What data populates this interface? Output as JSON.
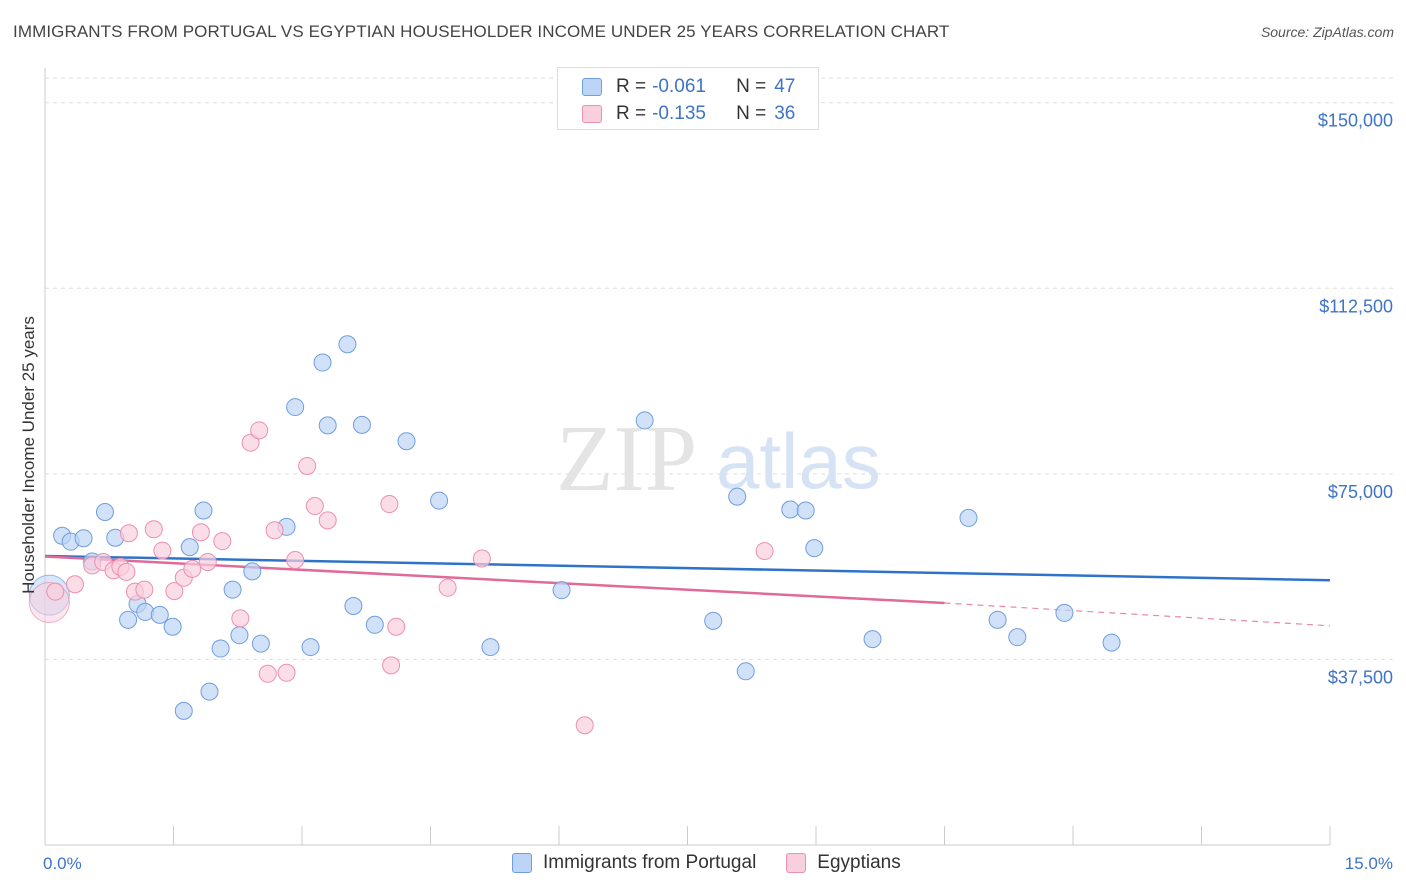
{
  "title": "IMMIGRANTS FROM PORTUGAL VS EGYPTIAN HOUSEHOLDER INCOME UNDER 25 YEARS CORRELATION CHART",
  "source": "Source: ZipAtlas.com",
  "watermark": {
    "zip": "ZIP",
    "atlas": "atlas"
  },
  "legend": {
    "r_label": "R =",
    "n_label": "N =",
    "rows": [
      {
        "r": "-0.061",
        "n": "47"
      },
      {
        "r": "-0.135",
        "n": "36"
      }
    ]
  },
  "colors": {
    "blue_fill": "#bcd4f5",
    "blue_stroke": "#6f9ee0",
    "blue_line": "#2f73c9",
    "pink_fill": "#f9cfdd",
    "pink_stroke": "#ec8fb0",
    "pink_line": "#e06a98",
    "axis_text": "#3d74c8",
    "grid": "#dddddd"
  },
  "chart_data": {
    "type": "scatter",
    "title": "IMMIGRANTS FROM PORTUGAL VS EGYPTIAN HOUSEHOLDER INCOME UNDER 25 YEARS CORRELATION CHART",
    "xlabel": "",
    "ylabel": "Householder Income Under 25 years",
    "xlim": [
      0,
      15
    ],
    "ylim": [
      0,
      155000
    ],
    "x_tick_labels": [
      "0.0%",
      "15.0%"
    ],
    "y_ticks": [
      37500,
      75000,
      112500,
      150000
    ],
    "y_tick_labels": [
      "$37,500",
      "$75,000",
      "$112,500",
      "$150,000"
    ],
    "grid": true,
    "legend_position": "top-center",
    "series": [
      {
        "name": "Immigrants from Portugal",
        "color": "#6f9ee0",
        "trend": {
          "x": [
            0,
            15
          ],
          "y": [
            58400,
            53500
          ]
        },
        "points": [
          {
            "x": 0.05,
            "y": 50500,
            "big": true
          },
          {
            "x": 0.2,
            "y": 62500
          },
          {
            "x": 0.3,
            "y": 61300
          },
          {
            "x": 0.45,
            "y": 62000
          },
          {
            "x": 0.55,
            "y": 57300
          },
          {
            "x": 0.7,
            "y": 67300
          },
          {
            "x": 0.82,
            "y": 62100
          },
          {
            "x": 0.97,
            "y": 45500
          },
          {
            "x": 1.08,
            "y": 48700
          },
          {
            "x": 1.17,
            "y": 47100
          },
          {
            "x": 1.34,
            "y": 46500
          },
          {
            "x": 1.49,
            "y": 44100
          },
          {
            "x": 1.62,
            "y": 27100
          },
          {
            "x": 1.69,
            "y": 60200
          },
          {
            "x": 1.85,
            "y": 67600
          },
          {
            "x": 1.92,
            "y": 31000
          },
          {
            "x": 2.05,
            "y": 39700
          },
          {
            "x": 2.19,
            "y": 51600
          },
          {
            "x": 2.27,
            "y": 42400
          },
          {
            "x": 2.42,
            "y": 55300
          },
          {
            "x": 2.52,
            "y": 40700
          },
          {
            "x": 2.82,
            "y": 64300
          },
          {
            "x": 2.92,
            "y": 88500
          },
          {
            "x": 3.1,
            "y": 40000
          },
          {
            "x": 3.24,
            "y": 97500
          },
          {
            "x": 3.3,
            "y": 84800
          },
          {
            "x": 3.53,
            "y": 101200
          },
          {
            "x": 3.6,
            "y": 48300
          },
          {
            "x": 3.7,
            "y": 84900
          },
          {
            "x": 3.85,
            "y": 44500
          },
          {
            "x": 4.22,
            "y": 81600
          },
          {
            "x": 4.6,
            "y": 69600
          },
          {
            "x": 5.2,
            "y": 40000
          },
          {
            "x": 6.03,
            "y": 51500
          },
          {
            "x": 7.0,
            "y": 85800
          },
          {
            "x": 7.8,
            "y": 45300
          },
          {
            "x": 8.08,
            "y": 70400
          },
          {
            "x": 8.18,
            "y": 35100
          },
          {
            "x": 8.7,
            "y": 67800
          },
          {
            "x": 8.88,
            "y": 67600
          },
          {
            "x": 8.98,
            "y": 60000
          },
          {
            "x": 9.66,
            "y": 41600
          },
          {
            "x": 10.78,
            "y": 66100
          },
          {
            "x": 11.12,
            "y": 45500
          },
          {
            "x": 11.35,
            "y": 42000
          },
          {
            "x": 11.9,
            "y": 46900
          },
          {
            "x": 12.45,
            "y": 40900
          }
        ]
      },
      {
        "name": "Egyptians",
        "color": "#ec8fb0",
        "trend": {
          "x": [
            0,
            10.5
          ],
          "y": [
            58300,
            48900
          ],
          "dashed_to": [
            15,
            44300
          ]
        },
        "points": [
          {
            "x": 0.05,
            "y": 49000,
            "big": true
          },
          {
            "x": 0.12,
            "y": 51200
          },
          {
            "x": 0.35,
            "y": 52700
          },
          {
            "x": 0.55,
            "y": 56500
          },
          {
            "x": 0.68,
            "y": 57200
          },
          {
            "x": 0.8,
            "y": 55500
          },
          {
            "x": 0.88,
            "y": 56200
          },
          {
            "x": 0.95,
            "y": 55200
          },
          {
            "x": 0.98,
            "y": 63000
          },
          {
            "x": 1.05,
            "y": 51200
          },
          {
            "x": 1.16,
            "y": 51600
          },
          {
            "x": 1.27,
            "y": 63800
          },
          {
            "x": 1.37,
            "y": 59500
          },
          {
            "x": 1.51,
            "y": 51300
          },
          {
            "x": 1.62,
            "y": 54000
          },
          {
            "x": 1.72,
            "y": 55800
          },
          {
            "x": 1.82,
            "y": 63200
          },
          {
            "x": 1.9,
            "y": 57200
          },
          {
            "x": 2.07,
            "y": 61400
          },
          {
            "x": 2.28,
            "y": 45800
          },
          {
            "x": 2.4,
            "y": 81300
          },
          {
            "x": 2.5,
            "y": 83800
          },
          {
            "x": 2.6,
            "y": 34600
          },
          {
            "x": 2.68,
            "y": 63600
          },
          {
            "x": 2.82,
            "y": 34800
          },
          {
            "x": 2.92,
            "y": 57600
          },
          {
            "x": 3.06,
            "y": 76600
          },
          {
            "x": 3.15,
            "y": 68500
          },
          {
            "x": 3.3,
            "y": 65600
          },
          {
            "x": 4.02,
            "y": 68900
          },
          {
            "x": 4.04,
            "y": 36300
          },
          {
            "x": 4.1,
            "y": 44100
          },
          {
            "x": 4.7,
            "y": 52000
          },
          {
            "x": 5.1,
            "y": 57900
          },
          {
            "x": 6.3,
            "y": 24200
          },
          {
            "x": 8.4,
            "y": 59400
          }
        ]
      }
    ]
  },
  "bottom_legend": [
    "Immigrants from Portugal",
    "Egyptians"
  ]
}
